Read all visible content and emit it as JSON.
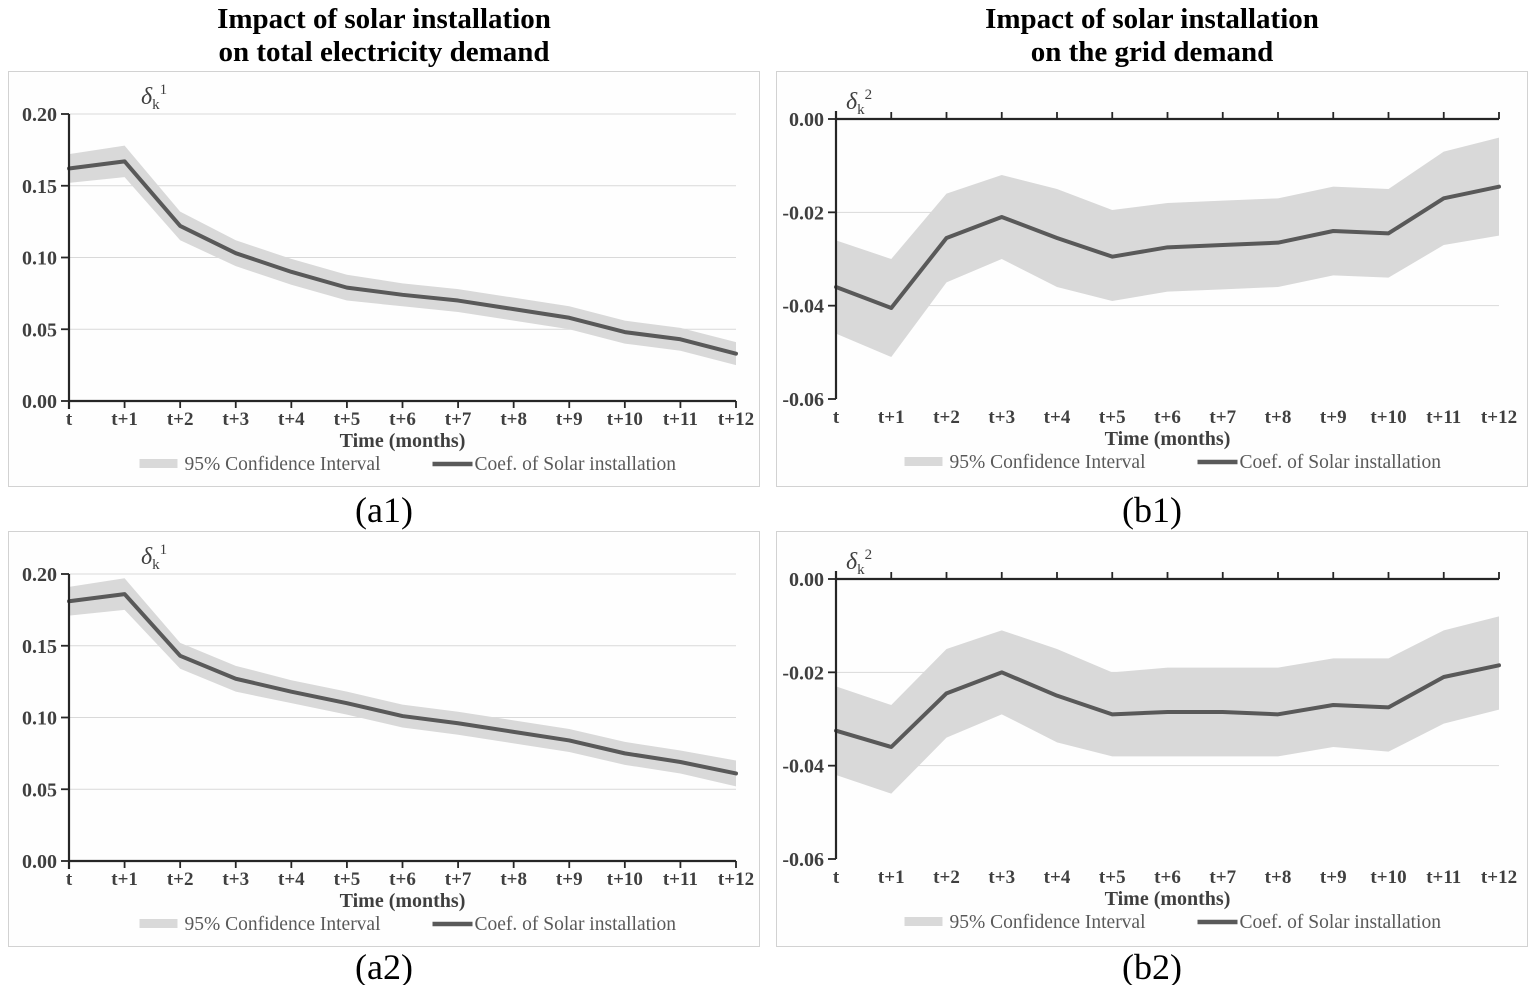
{
  "page": {
    "background": "#ffffff"
  },
  "columns": [
    {
      "title_line1": "Impact of solar installation",
      "title_line2": "on total electricity demand"
    },
    {
      "title_line1": "Impact of solar installation",
      "title_line2": "on the grid demand"
    }
  ],
  "colors": {
    "band": "#d9d9d9",
    "coef_line": "#595959",
    "gridline": "#d9d9d9",
    "axis": "#262626",
    "tick_text": "#3f3f3f",
    "legend_text": "#595959",
    "title_text": "#000000",
    "panel_border": "#d2d2d2"
  },
  "chart_data": [
    {
      "id": "a1",
      "type": "line",
      "caption": "(a1)",
      "y_symbol": {
        "base": "δ",
        "sub": "k",
        "sup": "1"
      },
      "xlabel": "Time (months)",
      "categories": [
        "t",
        "t+1",
        "t+2",
        "t+3",
        "t+4",
        "t+5",
        "t+6",
        "t+7",
        "t+8",
        "t+9",
        "t+10",
        "t+11",
        "t+12"
      ],
      "ylim": [
        0,
        0.2
      ],
      "yticks": [
        {
          "v": 0.0,
          "label": "0.00"
        },
        {
          "v": 0.05,
          "label": "0.05"
        },
        {
          "v": 0.1,
          "label": "0.10"
        },
        {
          "v": 0.15,
          "label": "0.15"
        },
        {
          "v": 0.2,
          "label": "0.20"
        }
      ],
      "gridlines": [
        0.05,
        0.1,
        0.15,
        0.2
      ],
      "legend_position": "bottom",
      "series": [
        {
          "name": "95% Confidence Interval",
          "type": "band",
          "upper": [
            0.172,
            0.178,
            0.132,
            0.112,
            0.099,
            0.088,
            0.082,
            0.078,
            0.072,
            0.066,
            0.056,
            0.051,
            0.041
          ],
          "lower": [
            0.152,
            0.156,
            0.112,
            0.094,
            0.081,
            0.07,
            0.066,
            0.062,
            0.056,
            0.05,
            0.04,
            0.035,
            0.025
          ]
        },
        {
          "name": "Coef. of Solar installation",
          "type": "line",
          "values": [
            0.162,
            0.167,
            0.122,
            0.103,
            0.09,
            0.079,
            0.074,
            0.07,
            0.064,
            0.058,
            0.048,
            0.043,
            0.033
          ]
        }
      ]
    },
    {
      "id": "b1",
      "type": "line",
      "caption": "(b1)",
      "y_symbol": {
        "base": "δ",
        "sub": "k",
        "sup": "2"
      },
      "xlabel": "Time (months)",
      "categories": [
        "t",
        "t+1",
        "t+2",
        "t+3",
        "t+4",
        "t+5",
        "t+6",
        "t+7",
        "t+8",
        "t+9",
        "t+10",
        "t+11",
        "t+12"
      ],
      "ylim": [
        -0.06,
        0
      ],
      "yticks": [
        {
          "v": 0.0,
          "label": "0.00"
        },
        {
          "v": -0.02,
          "label": "-0.02"
        },
        {
          "v": -0.04,
          "label": "-0.04"
        },
        {
          "v": -0.06,
          "label": "-0.06"
        }
      ],
      "gridlines": [
        -0.02,
        -0.04
      ],
      "legend_position": "bottom",
      "series": [
        {
          "name": "95% Confidence Interval",
          "type": "band",
          "upper": [
            -0.026,
            -0.03,
            -0.016,
            -0.012,
            -0.015,
            -0.0195,
            -0.018,
            -0.0175,
            -0.017,
            -0.0145,
            -0.015,
            -0.007,
            -0.004
          ],
          "lower": [
            -0.046,
            -0.051,
            -0.035,
            -0.03,
            -0.036,
            -0.039,
            -0.037,
            -0.0365,
            -0.036,
            -0.0335,
            -0.034,
            -0.027,
            -0.025
          ]
        },
        {
          "name": "Coef. of Solar installation",
          "type": "line",
          "values": [
            -0.036,
            -0.0405,
            -0.0255,
            -0.021,
            -0.0255,
            -0.0295,
            -0.0275,
            -0.027,
            -0.0265,
            -0.024,
            -0.0245,
            -0.017,
            -0.0145
          ]
        }
      ]
    },
    {
      "id": "a2",
      "type": "line",
      "caption": "(a2)",
      "y_symbol": {
        "base": "δ",
        "sub": "k",
        "sup": "1"
      },
      "xlabel": "Time (months)",
      "categories": [
        "t",
        "t+1",
        "t+2",
        "t+3",
        "t+4",
        "t+5",
        "t+6",
        "t+7",
        "t+8",
        "t+9",
        "t+10",
        "t+11",
        "t+12"
      ],
      "ylim": [
        0,
        0.2
      ],
      "yticks": [
        {
          "v": 0.0,
          "label": "0.00"
        },
        {
          "v": 0.05,
          "label": "0.05"
        },
        {
          "v": 0.1,
          "label": "0.10"
        },
        {
          "v": 0.15,
          "label": "0.15"
        },
        {
          "v": 0.2,
          "label": "0.20"
        }
      ],
      "gridlines": [
        0.05,
        0.1,
        0.15,
        0.2
      ],
      "legend_position": "bottom",
      "series": [
        {
          "name": "95% Confidence Interval",
          "type": "band",
          "upper": [
            0.191,
            0.197,
            0.152,
            0.136,
            0.126,
            0.118,
            0.109,
            0.104,
            0.098,
            0.092,
            0.083,
            0.077,
            0.07
          ],
          "lower": [
            0.171,
            0.175,
            0.134,
            0.118,
            0.11,
            0.102,
            0.093,
            0.088,
            0.082,
            0.076,
            0.067,
            0.061,
            0.052
          ]
        },
        {
          "name": "Coef. of Solar installation",
          "type": "line",
          "values": [
            0.181,
            0.186,
            0.143,
            0.127,
            0.118,
            0.11,
            0.101,
            0.096,
            0.09,
            0.084,
            0.075,
            0.069,
            0.061
          ]
        }
      ]
    },
    {
      "id": "b2",
      "type": "line",
      "caption": "(b2)",
      "y_symbol": {
        "base": "δ",
        "sub": "k",
        "sup": "2"
      },
      "xlabel": "Time (months)",
      "categories": [
        "t",
        "t+1",
        "t+2",
        "t+3",
        "t+4",
        "t+5",
        "t+6",
        "t+7",
        "t+8",
        "t+9",
        "t+10",
        "t+11",
        "t+12"
      ],
      "ylim": [
        -0.06,
        0
      ],
      "yticks": [
        {
          "v": 0.0,
          "label": "0.00"
        },
        {
          "v": -0.02,
          "label": "-0.02"
        },
        {
          "v": -0.04,
          "label": "-0.04"
        },
        {
          "v": -0.06,
          "label": "-0.06"
        }
      ],
      "gridlines": [
        -0.02,
        -0.04
      ],
      "legend_position": "bottom",
      "series": [
        {
          "name": "95% Confidence Interval",
          "type": "band",
          "upper": [
            -0.023,
            -0.027,
            -0.015,
            -0.011,
            -0.015,
            -0.02,
            -0.019,
            -0.019,
            -0.019,
            -0.017,
            -0.017,
            -0.011,
            -0.008
          ],
          "lower": [
            -0.042,
            -0.046,
            -0.034,
            -0.029,
            -0.035,
            -0.038,
            -0.038,
            -0.038,
            -0.038,
            -0.036,
            -0.037,
            -0.031,
            -0.028
          ]
        },
        {
          "name": "Coef. of Solar installation",
          "type": "line",
          "values": [
            -0.0325,
            -0.036,
            -0.0245,
            -0.02,
            -0.025,
            -0.029,
            -0.0285,
            -0.0285,
            -0.029,
            -0.027,
            -0.0275,
            -0.021,
            -0.0185
          ]
        }
      ]
    }
  ]
}
